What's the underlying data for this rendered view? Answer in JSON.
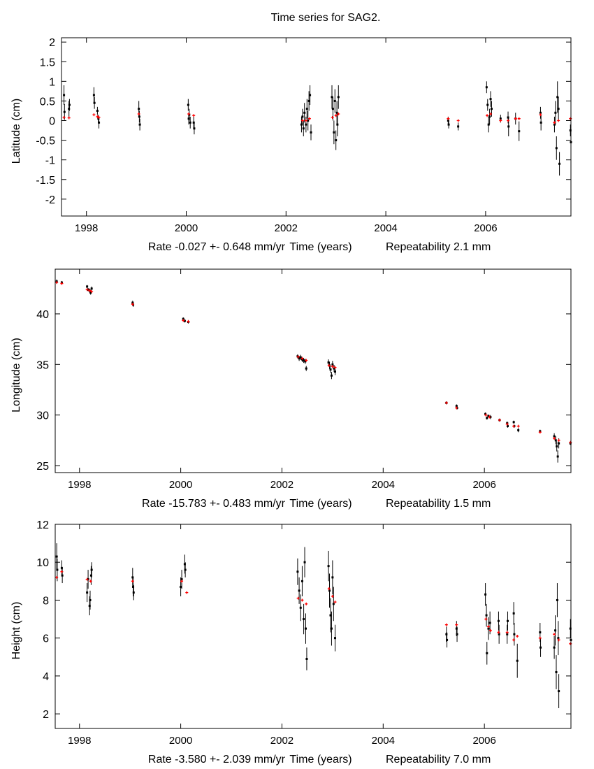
{
  "chart_data": [
    {
      "type": "scatter",
      "title": "Time series for SAG2.",
      "ylabel": "Latitude (cm)",
      "xlabel": "Time (years)",
      "rate": "Rate -0.027 +- 0.648 mm/yr",
      "repeatability": "Repeatability 2.1 mm",
      "xlim": [
        1997.5,
        2007.71
      ],
      "ylim": [
        -2.43,
        2.11
      ],
      "xticks": [
        1998,
        2000,
        2002,
        2004,
        2006
      ],
      "yticks": [
        -2,
        -1.5,
        -1,
        -0.5,
        0,
        0.5,
        1,
        1.5,
        2
      ],
      "series_color": "#000000",
      "model_color": "#ff0000",
      "points": [
        [
          1997.55,
          0.65,
          0.25
        ],
        [
          1997.56,
          0.22,
          0.2
        ],
        [
          1997.65,
          0.3,
          0.2
        ],
        [
          1997.66,
          0.4,
          0.15
        ],
        [
          1998.15,
          0.65,
          0.2
        ],
        [
          1998.16,
          0.45,
          0.15
        ],
        [
          1998.22,
          0.25,
          0.1
        ],
        [
          1998.24,
          0.05,
          0.1
        ],
        [
          1998.25,
          -0.05,
          0.15
        ],
        [
          1999.05,
          0.3,
          0.2
        ],
        [
          1999.06,
          0.1,
          0.15
        ],
        [
          1999.07,
          -0.1,
          0.15
        ],
        [
          2000.04,
          0.4,
          0.15
        ],
        [
          2000.05,
          0.05,
          0.15
        ],
        [
          2000.06,
          0.15,
          0.15
        ],
        [
          2000.08,
          -0.05,
          0.15
        ],
        [
          2000.15,
          -0.05,
          0.15
        ],
        [
          2000.16,
          -0.2,
          0.15
        ],
        [
          2002.31,
          -0.1,
          0.2
        ],
        [
          2002.33,
          0.1,
          0.2
        ],
        [
          2002.35,
          -0.2,
          0.2
        ],
        [
          2002.37,
          0.2,
          0.25
        ],
        [
          2002.4,
          -0.1,
          0.2
        ],
        [
          2002.42,
          0.3,
          0.25
        ],
        [
          2002.44,
          0.0,
          0.25
        ],
        [
          2002.46,
          0.5,
          0.25
        ],
        [
          2002.48,
          0.65,
          0.25
        ],
        [
          2002.5,
          -0.3,
          0.2
        ],
        [
          2002.92,
          0.6,
          0.3
        ],
        [
          2002.94,
          0.3,
          0.3
        ],
        [
          2002.96,
          -0.3,
          0.3
        ],
        [
          2002.98,
          0.5,
          0.3
        ],
        [
          2003.0,
          -0.5,
          0.25
        ],
        [
          2003.02,
          0.2,
          0.3
        ],
        [
          2003.03,
          -0.1,
          0.3
        ],
        [
          2003.05,
          0.6,
          0.3
        ],
        [
          2005.25,
          0.0,
          0.1
        ],
        [
          2005.26,
          -0.1,
          0.1
        ],
        [
          2005.45,
          -0.15,
          0.1
        ],
        [
          2006.02,
          0.85,
          0.15
        ],
        [
          2006.04,
          0.4,
          0.15
        ],
        [
          2006.06,
          -0.1,
          0.2
        ],
        [
          2006.08,
          0.1,
          0.2
        ],
        [
          2006.1,
          0.55,
          0.2
        ],
        [
          2006.12,
          0.3,
          0.2
        ],
        [
          2006.3,
          0.05,
          0.1
        ],
        [
          2006.45,
          0.08,
          0.15
        ],
        [
          2006.46,
          -0.15,
          0.25
        ],
        [
          2006.6,
          0.05,
          0.15
        ],
        [
          2006.67,
          -0.27,
          0.25
        ],
        [
          2007.1,
          0.2,
          0.15
        ],
        [
          2007.11,
          -0.05,
          0.2
        ],
        [
          2007.38,
          -0.1,
          0.2
        ],
        [
          2007.4,
          0.2,
          0.3
        ],
        [
          2007.42,
          -0.7,
          0.3
        ],
        [
          2007.44,
          0.6,
          0.4
        ],
        [
          2007.46,
          0.3,
          0.3
        ],
        [
          2007.48,
          -1.1,
          0.3
        ],
        [
          2007.7,
          -0.25,
          0.15
        ],
        [
          2007.71,
          -0.55,
          0.15
        ]
      ],
      "model": [
        [
          1997.55,
          0.08
        ],
        [
          1997.65,
          0.07
        ],
        [
          1998.15,
          0.15
        ],
        [
          1998.22,
          0.1
        ],
        [
          1998.25,
          0.08
        ],
        [
          1999.05,
          0.17
        ],
        [
          2000.05,
          0.17
        ],
        [
          2000.15,
          0.13
        ],
        [
          2002.33,
          0.0
        ],
        [
          2002.4,
          0.0
        ],
        [
          2002.47,
          0.05
        ],
        [
          2002.93,
          0.08
        ],
        [
          2003.0,
          0.13
        ],
        [
          2003.05,
          0.17
        ],
        [
          2005.25,
          0.05
        ],
        [
          2005.45,
          0.0
        ],
        [
          2006.03,
          0.13
        ],
        [
          2006.1,
          0.17
        ],
        [
          2006.3,
          0.0
        ],
        [
          2006.45,
          0.0
        ],
        [
          2006.6,
          0.05
        ],
        [
          2006.67,
          0.05
        ],
        [
          2007.1,
          0.15
        ],
        [
          2007.38,
          -0.05
        ],
        [
          2007.46,
          0.0
        ],
        [
          2007.7,
          0.05
        ]
      ]
    },
    {
      "type": "scatter",
      "ylabel": "Longitude (cm)",
      "xlabel": "Time (years)",
      "rate": "Rate -15.783 +- 0.483 mm/yr",
      "repeatability": "Repeatability 1.5 mm",
      "xlim": [
        1997.52,
        2007.71
      ],
      "ylim": [
        24.31,
        44.42
      ],
      "xticks": [
        1998,
        2000,
        2002,
        2004,
        2006
      ],
      "yticks": [
        25,
        30,
        35,
        40
      ],
      "series_color": "#000000",
      "model_color": "#ff0000",
      "points": [
        [
          1997.55,
          43.2,
          0.2
        ],
        [
          1997.65,
          43.1,
          0.15
        ],
        [
          1998.15,
          42.7,
          0.15
        ],
        [
          1998.17,
          42.4,
          0.15
        ],
        [
          1998.2,
          42.3,
          0.2
        ],
        [
          1998.22,
          42.1,
          0.2
        ],
        [
          1998.24,
          42.5,
          0.2
        ],
        [
          1999.05,
          41.1,
          0.2
        ],
        [
          1999.06,
          40.9,
          0.2
        ],
        [
          2000.05,
          39.5,
          0.15
        ],
        [
          2000.08,
          39.3,
          0.15
        ],
        [
          2000.15,
          39.2,
          0.15
        ],
        [
          2002.31,
          35.8,
          0.2
        ],
        [
          2002.34,
          35.6,
          0.25
        ],
        [
          2002.37,
          35.7,
          0.25
        ],
        [
          2002.4,
          35.5,
          0.25
        ],
        [
          2002.43,
          35.4,
          0.25
        ],
        [
          2002.46,
          35.3,
          0.25
        ],
        [
          2002.48,
          34.6,
          0.25
        ],
        [
          2002.92,
          35.2,
          0.3
        ],
        [
          2002.94,
          34.9,
          0.35
        ],
        [
          2002.96,
          34.5,
          0.35
        ],
        [
          2002.98,
          33.9,
          0.35
        ],
        [
          2003.0,
          35.0,
          0.35
        ],
        [
          2003.03,
          34.6,
          0.35
        ],
        [
          2003.05,
          34.3,
          0.35
        ],
        [
          2005.25,
          31.2,
          0.15
        ],
        [
          2005.45,
          30.9,
          0.15
        ],
        [
          2005.46,
          30.7,
          0.15
        ],
        [
          2006.02,
          30.1,
          0.15
        ],
        [
          2006.05,
          29.7,
          0.15
        ],
        [
          2006.08,
          29.9,
          0.15
        ],
        [
          2006.12,
          29.8,
          0.2
        ],
        [
          2006.3,
          29.5,
          0.15
        ],
        [
          2006.45,
          29.2,
          0.15
        ],
        [
          2006.46,
          28.9,
          0.15
        ],
        [
          2006.58,
          29.3,
          0.15
        ],
        [
          2006.59,
          28.9,
          0.15
        ],
        [
          2006.67,
          28.5,
          0.2
        ],
        [
          2007.1,
          28.4,
          0.15
        ],
        [
          2007.38,
          27.9,
          0.3
        ],
        [
          2007.41,
          27.5,
          0.4
        ],
        [
          2007.43,
          26.9,
          0.5
        ],
        [
          2007.45,
          25.9,
          0.6
        ],
        [
          2007.47,
          27.2,
          0.5
        ],
        [
          2007.7,
          27.2,
          0.15
        ]
      ],
      "model": [
        [
          1997.55,
          43.1
        ],
        [
          1997.65,
          43.0
        ],
        [
          1998.15,
          42.4
        ],
        [
          1998.2,
          42.3
        ],
        [
          1998.24,
          42.2
        ],
        [
          1999.05,
          40.95
        ],
        [
          2000.05,
          39.35
        ],
        [
          2000.15,
          39.25
        ],
        [
          2002.32,
          35.75
        ],
        [
          2002.4,
          35.6
        ],
        [
          2002.48,
          35.4
        ],
        [
          2002.93,
          34.9
        ],
        [
          2003.0,
          34.8
        ],
        [
          2003.05,
          34.7
        ],
        [
          2005.25,
          31.2
        ],
        [
          2005.45,
          30.7
        ],
        [
          2006.03,
          30.0
        ],
        [
          2006.1,
          29.8
        ],
        [
          2006.3,
          29.5
        ],
        [
          2006.45,
          29.1
        ],
        [
          2006.58,
          28.9
        ],
        [
          2006.67,
          28.9
        ],
        [
          2007.1,
          28.3
        ],
        [
          2007.38,
          27.7
        ],
        [
          2007.47,
          27.5
        ],
        [
          2007.7,
          27.3
        ]
      ]
    },
    {
      "type": "scatter",
      "ylabel": "Height (cm)",
      "xlabel": "Time (years)",
      "rate": "Rate -3.580 +- 2.039 mm/yr",
      "repeatability": "Repeatability 7.0 mm",
      "xlim": [
        1997.52,
        2007.71
      ],
      "ylim": [
        1.23,
        12
      ],
      "xticks": [
        1998,
        2000,
        2002,
        2004,
        2006
      ],
      "yticks": [
        2,
        4,
        6,
        8,
        10,
        12
      ],
      "series_color": "#000000",
      "model_color": "#ff0000",
      "points": [
        [
          1997.55,
          10.3,
          0.7
        ],
        [
          1997.56,
          9.6,
          0.6
        ],
        [
          1997.65,
          9.7,
          0.4
        ],
        [
          1997.66,
          9.3,
          0.4
        ],
        [
          1998.15,
          8.4,
          0.5
        ],
        [
          1998.17,
          9.1,
          0.5
        ],
        [
          1998.2,
          7.7,
          0.5
        ],
        [
          1998.21,
          8.0,
          0.5
        ],
        [
          1998.23,
          9.3,
          0.5
        ],
        [
          1998.24,
          9.6,
          0.4
        ],
        [
          1999.05,
          9.2,
          0.5
        ],
        [
          1999.06,
          8.7,
          0.5
        ],
        [
          1999.07,
          8.4,
          0.4
        ],
        [
          2000.0,
          8.7,
          0.5
        ],
        [
          2000.02,
          9.1,
          0.5
        ],
        [
          2000.08,
          9.9,
          0.5
        ],
        [
          2000.09,
          9.6,
          0.4
        ],
        [
          2002.31,
          9.5,
          0.7
        ],
        [
          2002.34,
          8.5,
          0.7
        ],
        [
          2002.37,
          7.6,
          0.7
        ],
        [
          2002.4,
          9.0,
          0.8
        ],
        [
          2002.43,
          7.0,
          0.8
        ],
        [
          2002.45,
          10.0,
          0.8
        ],
        [
          2002.47,
          6.5,
          0.8
        ],
        [
          2002.49,
          4.9,
          0.6
        ],
        [
          2002.92,
          9.8,
          0.8
        ],
        [
          2002.94,
          8.5,
          0.9
        ],
        [
          2002.96,
          7.2,
          0.9
        ],
        [
          2002.98,
          6.5,
          0.9
        ],
        [
          2003.0,
          9.2,
          0.9
        ],
        [
          2003.02,
          7.8,
          0.9
        ],
        [
          2003.05,
          6.0,
          0.7
        ],
        [
          2005.25,
          6.2,
          0.4
        ],
        [
          2005.26,
          5.9,
          0.4
        ],
        [
          2005.45,
          6.5,
          0.4
        ],
        [
          2005.46,
          6.2,
          0.4
        ],
        [
          2006.02,
          8.3,
          0.6
        ],
        [
          2006.04,
          7.2,
          0.6
        ],
        [
          2006.05,
          5.2,
          0.6
        ],
        [
          2006.08,
          6.5,
          0.6
        ],
        [
          2006.11,
          6.8,
          0.6
        ],
        [
          2006.28,
          6.9,
          0.5
        ],
        [
          2006.29,
          6.2,
          0.5
        ],
        [
          2006.45,
          6.2,
          0.5
        ],
        [
          2006.46,
          6.9,
          0.5
        ],
        [
          2006.58,
          7.3,
          0.6
        ],
        [
          2006.59,
          6.2,
          0.6
        ],
        [
          2006.65,
          4.8,
          0.9
        ],
        [
          2007.1,
          6.3,
          0.5
        ],
        [
          2007.11,
          5.5,
          0.5
        ],
        [
          2007.38,
          5.5,
          0.6
        ],
        [
          2007.4,
          6.4,
          0.8
        ],
        [
          2007.42,
          4.2,
          0.9
        ],
        [
          2007.44,
          8.0,
          0.9
        ],
        [
          2007.46,
          6.0,
          0.9
        ],
        [
          2007.47,
          3.2,
          0.9
        ],
        [
          2007.7,
          6.5,
          0.5
        ],
        [
          2007.71,
          5.9,
          0.5
        ]
      ],
      "model": [
        [
          1997.55,
          9.2
        ],
        [
          1997.65,
          9.5
        ],
        [
          1998.15,
          9.1
        ],
        [
          1998.22,
          9.0
        ],
        [
          1999.05,
          9.0
        ],
        [
          2000.02,
          9.0
        ],
        [
          2000.12,
          8.4
        ],
        [
          2002.32,
          8.1
        ],
        [
          2002.4,
          8.0
        ],
        [
          2002.48,
          7.8
        ],
        [
          2002.93,
          8.6
        ],
        [
          2003.0,
          8.2
        ],
        [
          2003.05,
          7.9
        ],
        [
          2005.25,
          6.7
        ],
        [
          2005.45,
          6.7
        ],
        [
          2006.03,
          7.0
        ],
        [
          2006.08,
          6.6
        ],
        [
          2006.12,
          6.4
        ],
        [
          2006.28,
          6.3
        ],
        [
          2006.45,
          6.3
        ],
        [
          2006.58,
          5.9
        ],
        [
          2006.65,
          6.1
        ],
        [
          2007.1,
          6.0
        ],
        [
          2007.38,
          6.2
        ],
        [
          2007.47,
          5.9
        ],
        [
          2007.7,
          5.7
        ]
      ]
    }
  ]
}
